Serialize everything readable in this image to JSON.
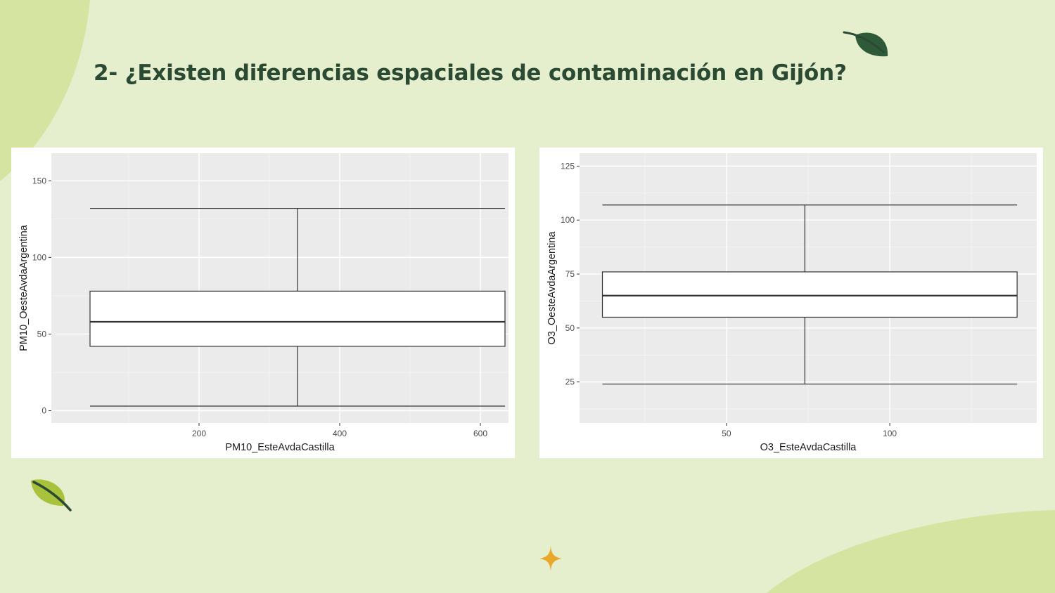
{
  "slide": {
    "title": "2- ¿Existen diferencias espaciales de contaminación en Gijón?",
    "colors": {
      "background": "#e5efcd",
      "blob": "#d6e4a2",
      "title": "#2a4a33",
      "leaf_dark": "#2f5a3a",
      "leaf_light": "#a8c23c",
      "star": "#e8a92a"
    },
    "icons": [
      "leaf-icon",
      "leaf-icon",
      "sparkle-star-icon"
    ]
  },
  "chart_data": [
    {
      "type": "boxplot",
      "xlabel": "PM10_EsteAvdaCastilla",
      "ylabel": "PM10_OesteAvdaArgentina",
      "xlim": [
        -10,
        640
      ],
      "ylim": [
        -8,
        168
      ],
      "xticks": [
        200,
        400,
        600
      ],
      "yticks": [
        0,
        50,
        100,
        150
      ],
      "grid": true,
      "boxes": [
        {
          "x_min": 45,
          "x_lower_hinge": 45,
          "x_median": 340,
          "x_upper_hinge": 635,
          "x_max": 635,
          "y_min": 3,
          "y_lower_hinge": 42,
          "y_median": 58,
          "y_upper_hinge": 78,
          "y_max": 132
        }
      ]
    },
    {
      "type": "boxplot",
      "xlabel": "O3_EsteAvdaCastilla",
      "ylabel": "O3_OesteAvdaArgentina",
      "xlim": [
        5,
        145
      ],
      "ylim": [
        6,
        131
      ],
      "xticks": [
        50,
        100
      ],
      "yticks": [
        25,
        50,
        75,
        100,
        125
      ],
      "grid": true,
      "boxes": [
        {
          "x_min": 12,
          "x_lower_hinge": 12,
          "x_median": 74,
          "x_upper_hinge": 139,
          "x_max": 139,
          "y_min": 24,
          "y_lower_hinge": 55,
          "y_median": 65,
          "y_upper_hinge": 76,
          "y_max": 107
        }
      ]
    }
  ]
}
